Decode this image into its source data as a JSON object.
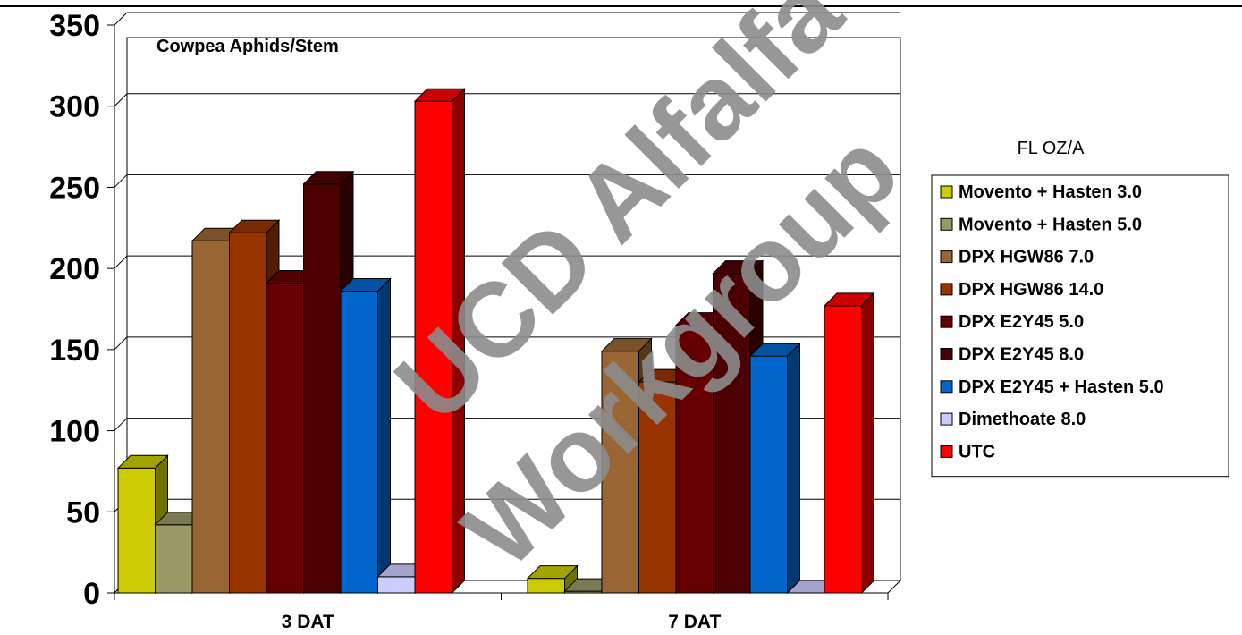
{
  "chart_data": {
    "type": "bar",
    "title": "",
    "annotation": "Cowpea Aphids/Stem",
    "xlabel": "",
    "ylabel": "",
    "ylim": [
      0,
      350
    ],
    "yticks": [
      0,
      50,
      100,
      150,
      200,
      250,
      300,
      350
    ],
    "categories": [
      "3 DAT",
      "7 DAT"
    ],
    "grid": true,
    "legend_title": "FL OZ/A",
    "legend_placement": "right",
    "series": [
      {
        "name": "Movento + Hasten 3.0",
        "color": "#cccc00",
        "values": [
          77,
          9
        ]
      },
      {
        "name": "Movento + Hasten 5.0",
        "color": "#999966",
        "values": [
          42,
          1
        ]
      },
      {
        "name": "DPX HGW86 7.0",
        "color": "#996633",
        "values": [
          217,
          149
        ]
      },
      {
        "name": "DPX HGW86 14.0",
        "color": "#993300",
        "values": [
          222,
          130
        ]
      },
      {
        "name": "DPX E2Y45 5.0",
        "color": "#660000",
        "values": [
          191,
          165
        ]
      },
      {
        "name": "DPX E2Y45 8.0",
        "color": "#4d0000",
        "values": [
          252,
          197
        ]
      },
      {
        "name": "DPX E2Y45 + Hasten 5.0",
        "color": "#0066cc",
        "values": [
          186,
          146
        ]
      },
      {
        "name": "Dimethoate 8.0",
        "color": "#ccccff",
        "values": [
          10,
          0
        ]
      },
      {
        "name": "UTC",
        "color": "#ff0000",
        "values": [
          303,
          177
        ]
      }
    ]
  },
  "watermark": [
    "UCD Alfalfa",
    "Workgroup"
  ]
}
